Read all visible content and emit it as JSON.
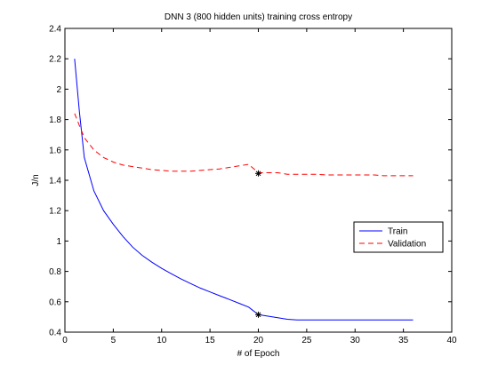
{
  "chart_data": {
    "type": "line",
    "title": "DNN 3 (800 hidden units) training cross entropy",
    "xlabel": "# of Epoch",
    "ylabel": "J/n",
    "xlim": [
      0,
      40
    ],
    "ylim": [
      0.4,
      2.4
    ],
    "xticks": [
      0,
      5,
      10,
      15,
      20,
      25,
      30,
      35,
      40
    ],
    "yticks": [
      0.4,
      0.6,
      0.8,
      1,
      1.2,
      1.4,
      1.6,
      1.8,
      2,
      2.2,
      2.4
    ],
    "grid": false,
    "legend_position": "right",
    "series": [
      {
        "name": "Train",
        "color": "#0000ff",
        "style": "solid",
        "x": [
          1,
          1.5,
          2,
          3,
          4,
          5,
          6,
          7,
          8,
          9,
          10,
          11,
          12,
          13,
          14,
          15,
          16,
          17,
          18,
          19,
          20,
          21,
          22,
          23,
          24,
          25,
          26,
          27,
          28,
          29,
          30,
          31,
          32,
          33,
          34,
          35,
          36
        ],
        "y": [
          2.2,
          1.85,
          1.55,
          1.33,
          1.2,
          1.11,
          1.03,
          0.96,
          0.905,
          0.86,
          0.82,
          0.785,
          0.75,
          0.72,
          0.69,
          0.665,
          0.64,
          0.615,
          0.59,
          0.565,
          0.515,
          0.505,
          0.495,
          0.485,
          0.48,
          0.48,
          0.48,
          0.48,
          0.48,
          0.48,
          0.48,
          0.48,
          0.48,
          0.48,
          0.48,
          0.48,
          0.48
        ]
      },
      {
        "name": "Validation",
        "color": "#ff0000",
        "style": "dashed",
        "x": [
          1,
          1.5,
          2,
          3,
          4,
          5,
          6,
          7,
          8,
          9,
          10,
          11,
          12,
          13,
          14,
          15,
          16,
          17,
          18,
          19,
          20,
          21,
          22,
          23,
          24,
          25,
          26,
          27,
          28,
          29,
          30,
          31,
          32,
          33,
          34,
          35,
          36
        ],
        "y": [
          1.84,
          1.76,
          1.68,
          1.6,
          1.55,
          1.52,
          1.5,
          1.49,
          1.48,
          1.47,
          1.465,
          1.46,
          1.46,
          1.46,
          1.465,
          1.47,
          1.475,
          1.485,
          1.495,
          1.505,
          1.45,
          1.45,
          1.45,
          1.44,
          1.44,
          1.44,
          1.44,
          1.435,
          1.435,
          1.435,
          1.435,
          1.435,
          1.435,
          1.43,
          1.43,
          1.43,
          1.43
        ]
      }
    ],
    "markers": [
      {
        "series": "Train",
        "x": 20,
        "y": 0.515,
        "symbol": "asterisk"
      },
      {
        "series": "Validation",
        "x": 20,
        "y": 1.445,
        "symbol": "asterisk"
      }
    ]
  }
}
